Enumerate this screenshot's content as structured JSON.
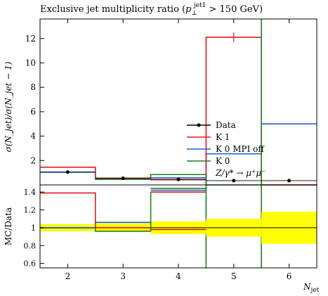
{
  "chart_data": {
    "type": "line",
    "title": {
      "main": "Exclusive jet multiplicity ratio (",
      "p": "p",
      "sub": "⊥",
      "sup": "jet1",
      "rest": " > 150 GeV)"
    },
    "xlabel": {
      "main": "N",
      "sub": "jet"
    },
    "ylabel_top": "σ(N_jet)/σ(N_jet − 1)",
    "ylabel_bottom": "MC/Data",
    "x_range": [
      1.5,
      6.5
    ],
    "x_ticks": [
      "2",
      "3",
      "4",
      "5",
      "6"
    ],
    "top_ylim": [
      0,
      13.6
    ],
    "top_yticks": [
      "2",
      "4",
      "6",
      "8",
      "10",
      "12"
    ],
    "bottom_ylim": [
      0.55,
      1.48
    ],
    "bottom_yticks": [
      "0.6",
      "0.8",
      "1",
      "1.2",
      "1.4"
    ],
    "bin_edges": [
      1.5,
      2.5,
      3.5,
      4.5,
      5.5,
      6.5
    ],
    "data": {
      "name": "Data",
      "x": [
        2,
        3,
        4,
        5,
        6
      ],
      "y": [
        1.05,
        0.55,
        0.45,
        0.35,
        0.35
      ],
      "yerr": [
        0.05,
        0.03,
        0.05,
        0.05,
        0.05
      ]
    },
    "band_upper": [
      1.04,
      1.05,
      1.07,
      1.1,
      1.18
    ],
    "band_lower": [
      0.96,
      0.96,
      0.93,
      0.9,
      0.82
    ],
    "series": [
      {
        "name": "K 1",
        "color": "#e41a1c",
        "values": [
          1.45,
          0.55,
          0.42,
          12.1,
          0.0
        ],
        "ratio": [
          1.39,
          1.0,
          0.98,
          null,
          null
        ],
        "marker_error": 0.4
      },
      {
        "name": "K 0 MPI off",
        "color": "#1f5fd0",
        "values": [
          1.05,
          0.55,
          0.58,
          2.55,
          5.0
        ],
        "ratio": [
          1.0,
          1.06,
          null,
          null,
          null
        ]
      },
      {
        "name": "K 0",
        "color": "#1f7f1f",
        "values": [
          1.05,
          0.45,
          0.85,
          0.0,
          0.0
        ],
        "ratio": [
          1.0,
          0.96,
          null,
          null,
          null
        ]
      }
    ],
    "legend": {
      "items": [
        "Data",
        "K 1",
        "K 0 MPI off",
        "K 0",
        "Z/γ* → μ⁺μ⁻"
      ]
    }
  }
}
